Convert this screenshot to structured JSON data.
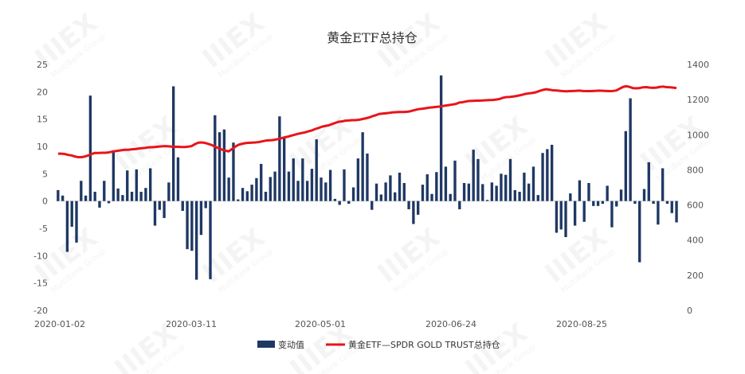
{
  "chart_data": {
    "type": "bar+line",
    "title": "黄金ETF总持仓",
    "x_tick_labels": [
      "2020-01-02",
      "2020-03-11",
      "2020-05-01",
      "2020-06-24",
      "2020-08-25"
    ],
    "y_left": {
      "min": -20,
      "max": 25,
      "step": 5,
      "ticks": [
        "25",
        "20",
        "15",
        "10",
        "5",
        "0",
        "-5",
        "-10",
        "-15",
        "-20"
      ]
    },
    "y_right": {
      "min": 0,
      "max": 1400,
      "step": 200,
      "ticks": [
        "1400",
        "1200",
        "1000",
        "800",
        "600",
        "400",
        "200",
        "0"
      ]
    },
    "legend": {
      "position": "bottom",
      "bar_label": "变动值",
      "line_label": "黄金ETF—SPDR GOLD TRUST总持仓"
    },
    "colors": {
      "bar": "#1f3864",
      "line": "#e8141b"
    },
    "series": [
      {
        "name": "变动值",
        "kind": "bar",
        "axis": "left",
        "values": [
          2,
          1,
          -9.3,
          -4.7,
          -7.6,
          3.7,
          1,
          19.3,
          1.7,
          -1.2,
          3.7,
          -0.4,
          9.3,
          2.3,
          1.1,
          5.6,
          1.7,
          5.8,
          1.7,
          2.4,
          6,
          -4.5,
          -1.6,
          -3.1,
          3.4,
          21,
          8,
          -1.8,
          -8.8,
          -9.1,
          -14.4,
          -6.2,
          -1.3,
          -14.3,
          15.7,
          12.6,
          13.1,
          4.3,
          10.7,
          0.3,
          2.4,
          1.8,
          3,
          4.2,
          6.8,
          1.7,
          4.4,
          5.4,
          15.5,
          11.5,
          5.4,
          7.8,
          3.7,
          7.8,
          3.7,
          5.9,
          11.3,
          4.3,
          3.4,
          5.7,
          0.4,
          -0.7,
          5.8,
          -0.5,
          2.5,
          7.8,
          12.6,
          8.7,
          -1.6,
          3.2,
          1.2,
          3.4,
          4.7,
          1.6,
          5.2,
          3.3,
          -1.5,
          -4.2,
          -2.5,
          3,
          4.9,
          1.3,
          5.3,
          23,
          6.3,
          1.3,
          7.4,
          -1.5,
          3.3,
          3.2,
          9.4,
          7.7,
          3.1,
          0.2,
          3.4,
          2.8,
          5,
          4.8,
          7.7,
          2,
          1.7,
          5.2,
          3.2,
          6.3,
          1.1,
          8.8,
          9.5,
          10.3,
          -5.8,
          -5.2,
          -6.6,
          1.4,
          -4.5,
          3.8,
          -3.8,
          3.3,
          -0.9,
          -0.9,
          -0.5,
          2.8,
          -4.8,
          -1,
          2.1,
          12.8,
          18.8,
          -0.5,
          -11.2,
          2.2,
          7.1,
          -0.5,
          -4.3,
          6,
          -0.5,
          -2.2,
          -3.9
        ]
      },
      {
        "name": "黄金ETF—SPDR GOLD TRUST总持仓",
        "kind": "line",
        "axis": "right",
        "values": [
          892,
          892,
          890,
          885,
          882,
          876,
          872,
          872,
          876,
          882,
          890,
          896,
          896,
          897,
          897,
          899,
          903,
          906,
          909,
          912,
          914,
          914,
          917,
          918,
          921,
          923,
          925,
          928,
          929,
          930,
          932,
          934,
          935,
          934,
          932,
          931,
          931,
          930,
          930,
          932,
          936,
          947,
          955,
          956,
          953,
          947,
          941,
          931,
          923,
          915,
          910,
          905,
          918,
          932,
          943,
          948,
          952,
          954,
          955,
          956,
          958,
          962,
          966,
          968,
          969,
          972,
          976,
          981,
          986,
          990,
          996,
          1001,
          1006,
          1010,
          1014,
          1020,
          1025,
          1033,
          1039,
          1046,
          1050,
          1054,
          1061,
          1068,
          1074,
          1076,
          1080,
          1081,
          1083,
          1083,
          1085,
          1089,
          1093,
          1098,
          1105,
          1111,
          1118,
          1120,
          1122,
          1124,
          1127,
          1128,
          1129,
          1129,
          1130,
          1132,
          1137,
          1142,
          1146,
          1148,
          1151,
          1154,
          1156,
          1158,
          1160,
          1163,
          1166,
          1169,
          1172,
          1175,
          1183,
          1185,
          1189,
          1192,
          1193,
          1194,
          1194,
          1195,
          1196,
          1197,
          1198,
          1200,
          1203,
          1210,
          1214,
          1215,
          1217,
          1220,
          1224,
          1228,
          1233,
          1236,
          1238,
          1242,
          1249,
          1255,
          1259,
          1256,
          1253,
          1252,
          1250,
          1248,
          1247,
          1248,
          1249,
          1250,
          1251,
          1249,
          1248,
          1248,
          1249,
          1250,
          1251,
          1250,
          1249,
          1248,
          1249,
          1252,
          1262,
          1272,
          1276,
          1272,
          1265,
          1264,
          1266,
          1270,
          1271,
          1268,
          1267,
          1268,
          1272,
          1274,
          1271,
          1270,
          1268,
          1266
        ]
      }
    ]
  },
  "watermark": "MultiBank Group"
}
